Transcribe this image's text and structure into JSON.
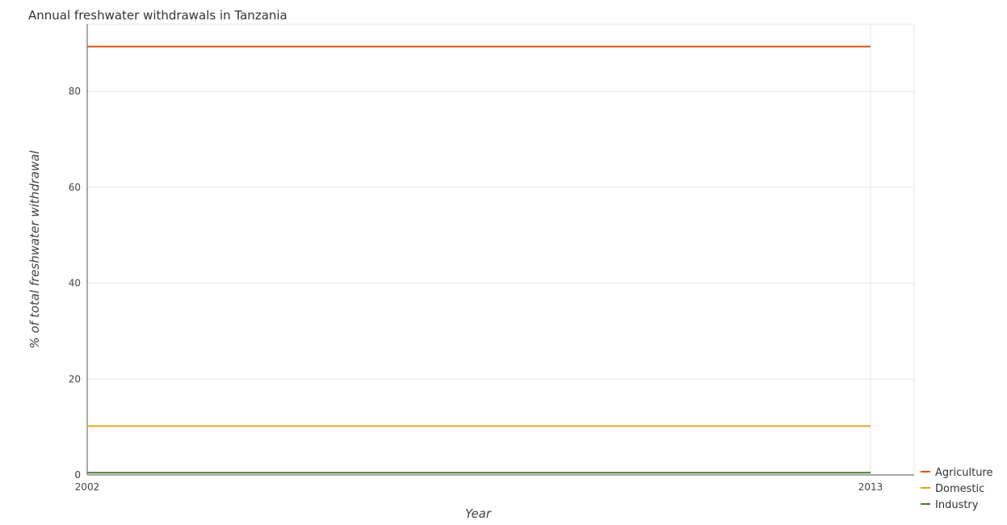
{
  "chart_data": {
    "type": "line",
    "title": "Annual freshwater withdrawals in Tanzania",
    "xlabel": "Year",
    "ylabel": "% of total freshwater withdrawal",
    "categories": [
      "2002",
      "2013"
    ],
    "ylim": [
      0,
      94
    ],
    "yticks": [
      "0",
      "20",
      "40",
      "60",
      "80"
    ],
    "grid": true,
    "legend_position": "bottom-right",
    "series": [
      {
        "name": "Agriculture",
        "values": [
          89.35,
          89.35
        ],
        "color": "#d9541a"
      },
      {
        "name": "Domestic",
        "values": [
          10.19,
          10.19
        ],
        "color": "#e0a623"
      },
      {
        "name": "Industry",
        "values": [
          0.47,
          0.47
        ],
        "color": "#4b7a2a"
      }
    ]
  }
}
